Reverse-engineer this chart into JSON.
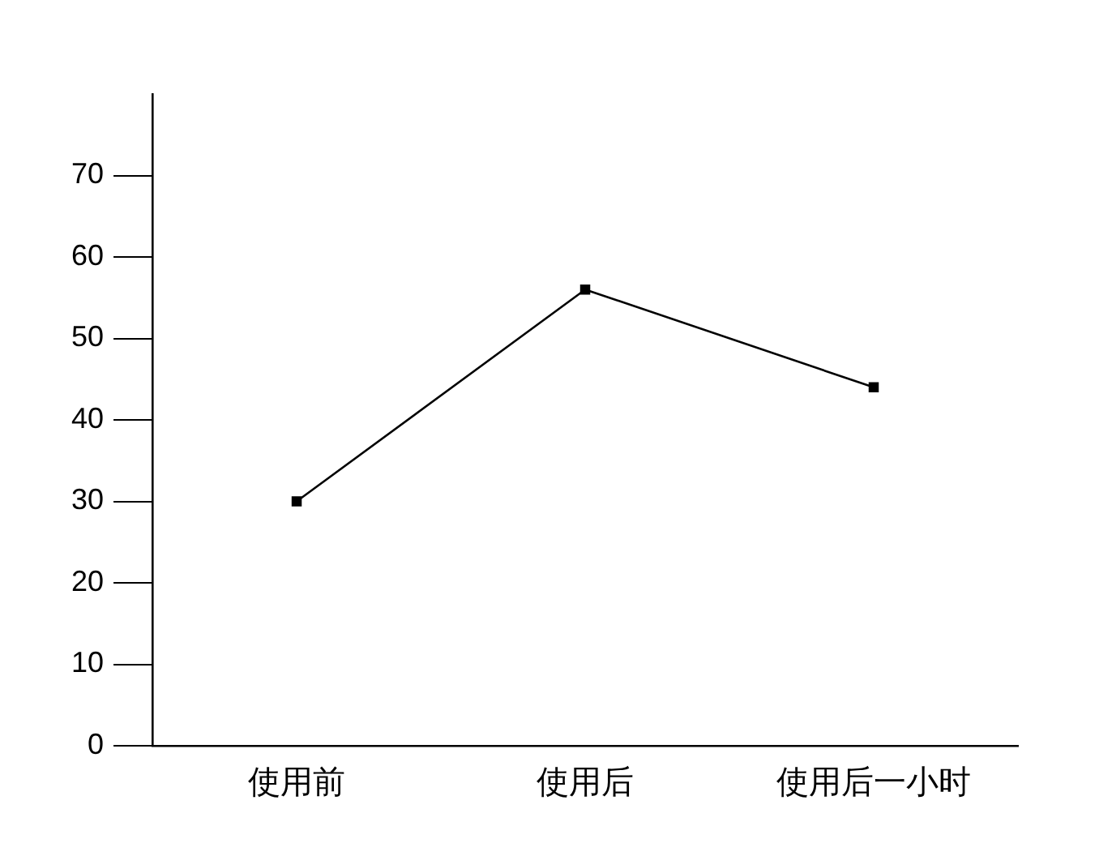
{
  "chart_data": {
    "type": "line",
    "categories": [
      "使用前",
      "使用后",
      "使用后一小时"
    ],
    "series": [
      {
        "color": "#000000",
        "values": [
          30,
          56,
          44
        ]
      }
    ],
    "ylim": [
      0,
      80
    ],
    "yticks": [
      0,
      10,
      20,
      30,
      40,
      50,
      60,
      70
    ],
    "grid": false,
    "legend": false,
    "marker": "square",
    "line_style": "solid"
  }
}
